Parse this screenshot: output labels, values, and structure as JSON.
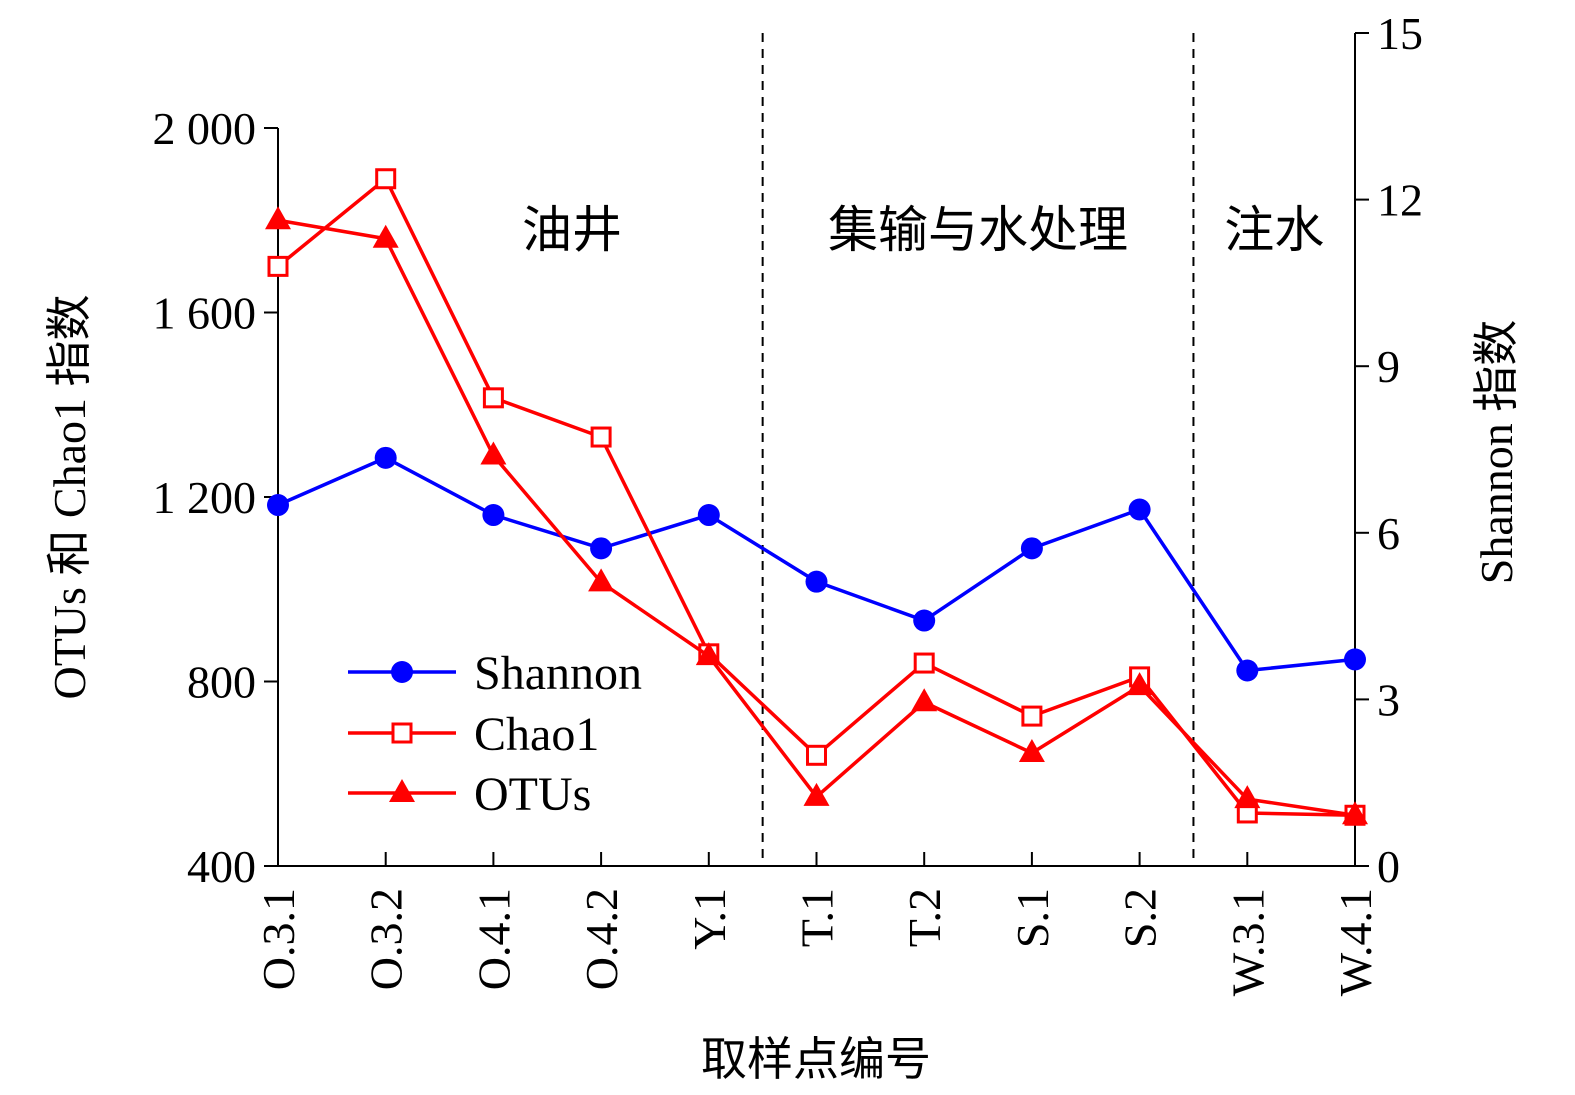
{
  "chart_data": {
    "type": "line",
    "xlabel": "取样点编号",
    "ylabel_left": "OTUs 和 Chao1 指数",
    "ylabel_right": "Shannon 指数",
    "categories": [
      "O.3.1",
      "O.3.2",
      "O.4.1",
      "O.4.2",
      "Y.1",
      "T.1",
      "T.2",
      "S.1",
      "S.2",
      "W.3.1",
      "W.4.1"
    ],
    "y_left": {
      "range": [
        400,
        2000
      ],
      "ticks": [
        400,
        800,
        1200,
        1600,
        2000
      ],
      "tick_labels": [
        "400",
        "800",
        "1 200",
        "1 600",
        "2 000"
      ]
    },
    "y_right": {
      "range": [
        0,
        15
      ],
      "ticks": [
        0,
        3,
        6,
        9,
        12,
        15
      ],
      "tick_labels": [
        "0",
        "3",
        "6",
        "9",
        "12",
        "15"
      ]
    },
    "series": [
      {
        "name": "Shannon",
        "axis": "right",
        "color": "#0000ff",
        "marker": "filled-circle",
        "values": [
          6.5,
          7.35,
          6.32,
          5.72,
          6.32,
          5.12,
          4.42,
          5.72,
          6.42,
          3.52,
          3.72
        ]
      },
      {
        "name": "Chao1",
        "axis": "left",
        "color": "#ff0000",
        "marker": "hollow-square",
        "values": [
          1700,
          1890,
          1415,
          1330,
          860,
          640,
          840,
          725,
          810,
          515,
          510
        ]
      },
      {
        "name": "OTUs",
        "axis": "left",
        "color": "#ff0000",
        "marker": "filled-triangle",
        "values": [
          1800,
          1760,
          1290,
          1015,
          855,
          550,
          755,
          645,
          790,
          545,
          510
        ]
      }
    ],
    "region_dividers_after": [
      "Y.1",
      "S.2"
    ],
    "regions": [
      {
        "label": "油井",
        "from": "O.3.1",
        "to": "Y.1"
      },
      {
        "label": "集输与水处理",
        "from": "T.1",
        "to": "S.2"
      },
      {
        "label": "注水",
        "from": "W.3.1",
        "to": "W.4.1"
      }
    ],
    "legend": {
      "position": "lower-left"
    }
  }
}
